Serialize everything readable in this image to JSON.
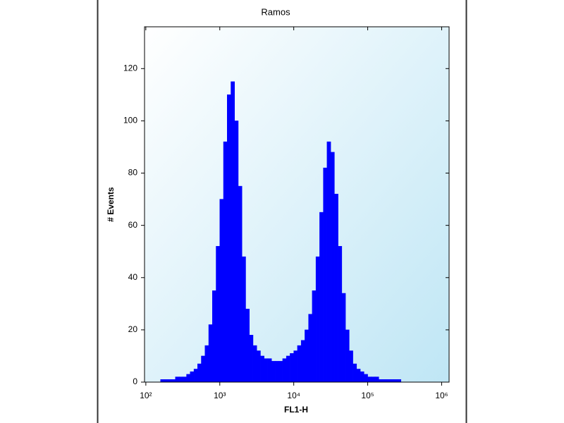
{
  "chart_data": {
    "type": "histogram",
    "title": "Ramos",
    "x_label": "FL1-H",
    "y_label": "# Events",
    "log_x": true,
    "color": "#0000ff",
    "bins": [
      100,
      112,
      126,
      141,
      158,
      178,
      200,
      224,
      251,
      282,
      316,
      355,
      398,
      447,
      501,
      562,
      631,
      708,
      794,
      891,
      1000,
      1122,
      1259,
      1413,
      1585,
      1778,
      1995,
      2239,
      2512,
      2818,
      3162,
      3548,
      3981,
      4467,
      5012,
      5623,
      6310,
      7079,
      7943,
      8913,
      10000,
      11220,
      12590,
      14130,
      15850,
      17780,
      19950,
      22390,
      25120,
      28180,
      31620,
      35480,
      39810,
      44670,
      50120,
      56230,
      63100,
      70790,
      79430,
      89130,
      100000,
      112200,
      125900,
      141300,
      158500,
      177800,
      199500,
      223900,
      251200,
      281800,
      316200,
      354800,
      398100,
      446700,
      501200,
      562300,
      631000,
      707900,
      794300,
      891300,
      1000000
    ],
    "values": [
      0,
      0,
      0,
      0,
      1,
      1,
      1,
      1,
      2,
      2,
      2,
      3,
      4,
      5,
      7,
      10,
      14,
      22,
      35,
      52,
      70,
      92,
      110,
      115,
      100,
      75,
      48,
      28,
      18,
      14,
      12,
      10,
      9,
      9,
      8,
      8,
      8,
      9,
      10,
      11,
      12,
      14,
      16,
      20,
      26,
      35,
      48,
      65,
      82,
      92,
      88,
      72,
      52,
      34,
      20,
      12,
      7,
      5,
      4,
      3,
      2,
      2,
      2,
      1,
      1,
      1,
      1,
      1,
      1,
      0,
      0,
      0,
      0,
      0,
      0,
      0,
      0,
      0,
      0,
      0
    ],
    "xlim": [
      96,
      1260000
    ],
    "ylim": [
      0,
      136
    ],
    "xticks": [
      {
        "value": 100,
        "label": "10²"
      },
      {
        "value": 1000,
        "label": "10³"
      },
      {
        "value": 10000,
        "label": "10⁴"
      },
      {
        "value": 100000,
        "label": "10⁵"
      },
      {
        "value": 1000000,
        "label": "10⁶"
      }
    ],
    "yticks": [
      0,
      20,
      40,
      60,
      80,
      100,
      120
    ]
  }
}
